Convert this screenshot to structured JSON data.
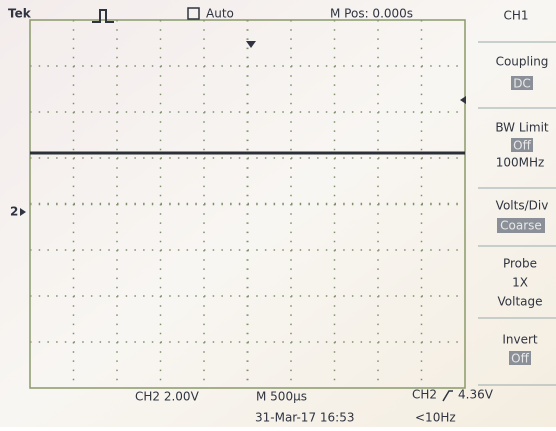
{
  "header": {
    "brand": "Tek",
    "trigger_state": "Auto",
    "position": "M Pos: 0.000s",
    "channel": "CH1"
  },
  "menu": [
    {
      "label": "Coupling",
      "setting": "DC"
    },
    {
      "label": "BW Limit",
      "setting": "Off",
      "note": "100MHz"
    },
    {
      "label": "Volts/Div",
      "setting": "Coarse"
    },
    {
      "label": "Probe",
      "lines": [
        "1X",
        "Voltage"
      ]
    },
    {
      "label": "Invert",
      "setting": "Off"
    }
  ],
  "marker": "2",
  "footer": {
    "channel_scale": "CH2  2.00V",
    "timebase": "M 500µs",
    "trigger_source": "CH2",
    "trigger_level": "4.36V",
    "datetime": "31-Mar-17 16:53",
    "frequency": "<10Hz"
  }
}
